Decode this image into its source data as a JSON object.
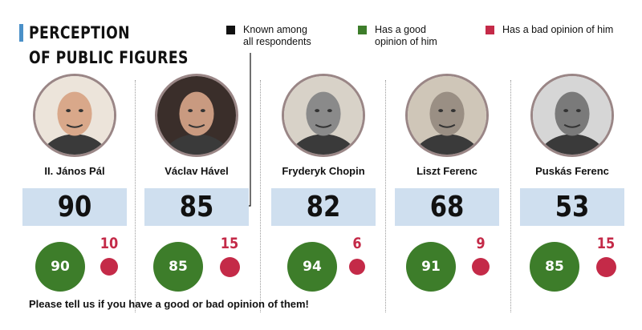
{
  "title_lines": [
    "PERCEPTION",
    "OF PUBLIC FIGURES"
  ],
  "legend": [
    {
      "label": "Known among\nall respondents",
      "color": "#111111"
    },
    {
      "label": "Has a good\nopinion of him",
      "color": "#3d7d2a"
    },
    {
      "label": "Has a bad opinion of him",
      "color": "#c42a48"
    }
  ],
  "footer": "Please tell us if you have a good or bad opinion of them!",
  "chart_data": {
    "type": "bar",
    "categories": [
      "II. János Pál",
      "Václav Hável",
      "Fryderyk Chopin",
      "Liszt Ferenc",
      "Puskás Ferenc"
    ],
    "series": [
      {
        "name": "Known among all respondents",
        "values": [
          90,
          85,
          82,
          68,
          53
        ]
      },
      {
        "name": "Has a good opinion of him",
        "values": [
          90,
          85,
          94,
          91,
          85
        ]
      },
      {
        "name": "Has a bad opinion of him",
        "values": [
          10,
          15,
          6,
          9,
          15
        ]
      }
    ],
    "colors": {
      "known": "#cfdfef",
      "good": "#3d7d2a",
      "bad": "#c42a48"
    }
  }
}
